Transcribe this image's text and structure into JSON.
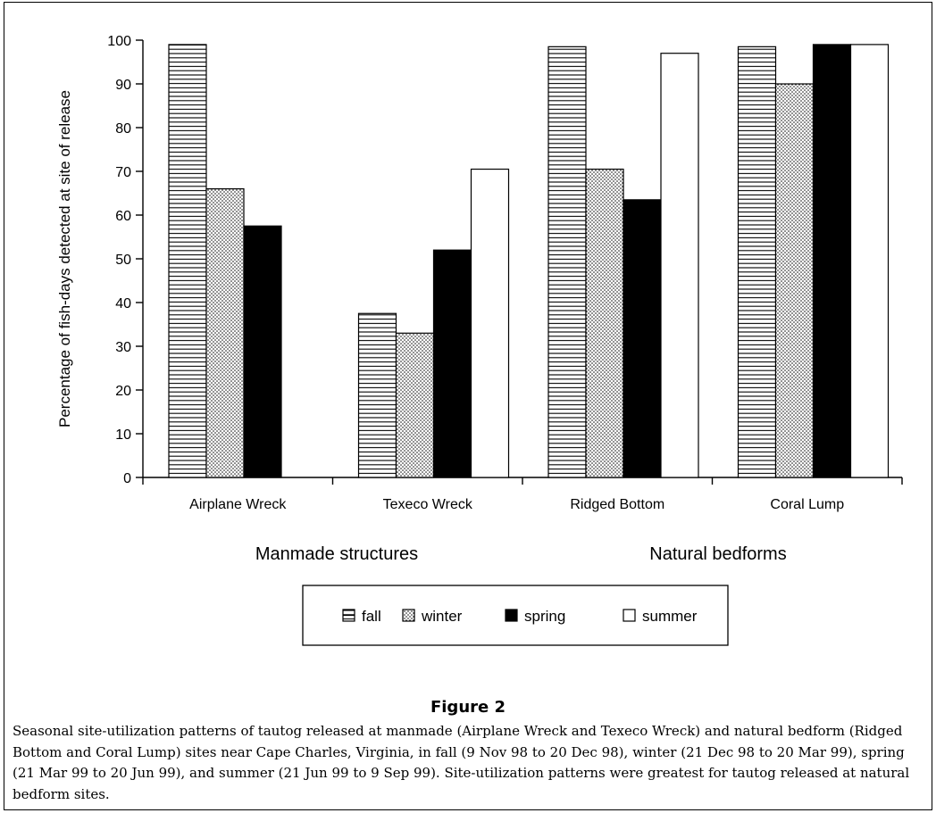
{
  "figure": {
    "title": "Figure 2",
    "caption": "Seasonal site-utilization patterns of tautog released at manmade (Airplane Wreck and Texeco Wreck) and natural bedform (Ridged Bottom and Coral Lump) sites near Cape Charles, Virginia, in fall (9 Nov 98 to 20 Dec 98), winter (21 Dec 98 to 20 Mar 99), spring (21 Mar 99 to 20 Jun 99), and summer (21 Jun 99 to 9 Sep 99). Site-utilization patterns were greatest for tautog released at natural bedform sites."
  },
  "chart_data": {
    "type": "bar",
    "title": "",
    "xlabel": "",
    "ylabel": "Percentage of fish-days detected at site of release",
    "ylim": [
      0,
      100
    ],
    "yticks": [
      0,
      10,
      20,
      30,
      40,
      50,
      60,
      70,
      80,
      90,
      100
    ],
    "categories": [
      "Airplane Wreck",
      "Texeco Wreck",
      "Ridged Bottom",
      "Coral Lump"
    ],
    "category_groups": [
      {
        "label": "Manmade structures",
        "categories": [
          "Airplane Wreck",
          "Texeco Wreck"
        ]
      },
      {
        "label": "Natural bedforms",
        "categories": [
          "Ridged Bottom",
          "Coral Lump"
        ]
      }
    ],
    "series": [
      {
        "name": "fall",
        "pattern": "horizontal-lines",
        "values": [
          99,
          37.5,
          98.5,
          98.5
        ]
      },
      {
        "name": "winter",
        "pattern": "dots",
        "values": [
          66,
          33,
          70.5,
          90
        ]
      },
      {
        "name": "spring",
        "pattern": "solid-black",
        "values": [
          57.5,
          52,
          63.5,
          99
        ]
      },
      {
        "name": "summer",
        "pattern": "white",
        "values": [
          0,
          70.5,
          97,
          99
        ]
      }
    ],
    "legend": {
      "placement": "bottom-center"
    },
    "grid": false,
    "colors": {
      "bar_stroke": "#000000",
      "solid": "#000000",
      "empty": "#ffffff"
    }
  }
}
